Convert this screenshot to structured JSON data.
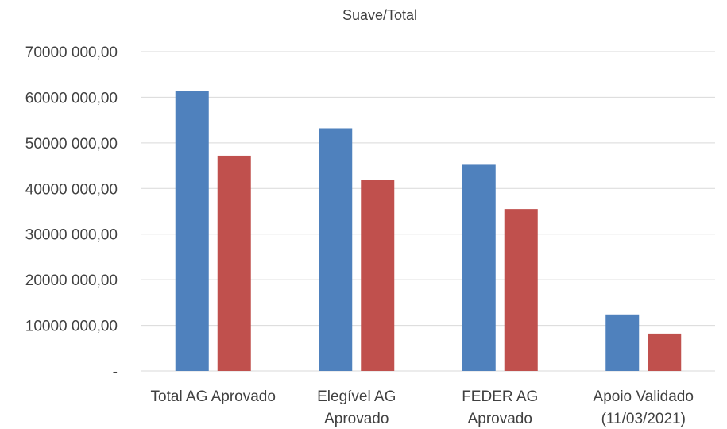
{
  "chart_data": {
    "type": "bar",
    "title": "Suave/Total",
    "xlabel": "",
    "ylabel": "",
    "categories": [
      [
        "Total AG Aprovado"
      ],
      [
        "Elegível AG",
        "Aprovado"
      ],
      [
        "FEDER AG",
        "Aprovado"
      ],
      [
        "Apoio Validado",
        "(11/03/2021)"
      ]
    ],
    "series": [
      {
        "color": "#4f81bd",
        "values": [
          61300000,
          53200000,
          45200000,
          12400000
        ]
      },
      {
        "color": "#c0504d",
        "values": [
          47200000,
          41900000,
          35500000,
          8200000
        ]
      }
    ],
    "ylim": [
      0,
      70000000
    ],
    "yticks": [
      {
        "value": 0,
        "label": "-"
      },
      {
        "value": 10000000,
        "label": "10000 000,00"
      },
      {
        "value": 20000000,
        "label": "20000 000,00"
      },
      {
        "value": 30000000,
        "label": "30000 000,00"
      },
      {
        "value": 40000000,
        "label": "40000 000,00"
      },
      {
        "value": 50000000,
        "label": "50000 000,00"
      },
      {
        "value": 60000000,
        "label": "60000 000,00"
      },
      {
        "value": 70000000,
        "label": "70000 000,00"
      }
    ],
    "grid": true,
    "legend": "none"
  }
}
